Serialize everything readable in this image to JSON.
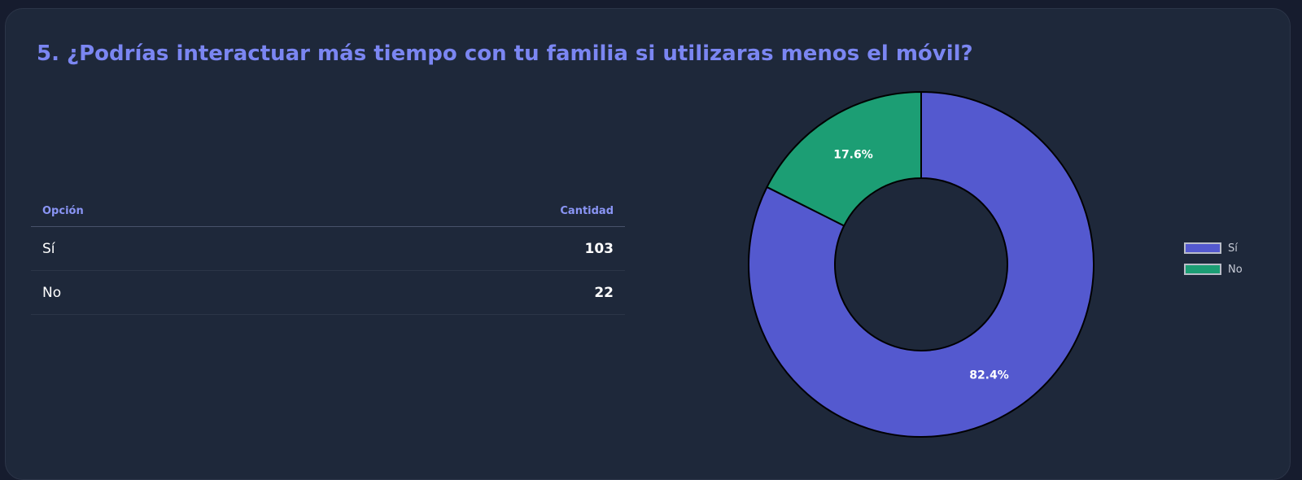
{
  "title": "5. ¿Podrías interactuar más tiempo con tu familia si utilizaras menos el móvil?",
  "table": {
    "headers": [
      "Opción",
      "Cantidad"
    ],
    "rows": [
      {
        "option": "Sí",
        "count": "103"
      },
      {
        "option": "No",
        "count": "22"
      }
    ]
  },
  "chart_data": {
    "type": "pie",
    "variant": "doughnut",
    "categories": [
      "Sí",
      "No"
    ],
    "values": [
      103,
      22
    ],
    "labels": [
      "82.4%",
      "17.6%"
    ],
    "colors": [
      "#5459cf",
      "#1c9e74"
    ],
    "legend": {
      "position": "right",
      "entries": [
        "Sí",
        "No"
      ]
    }
  }
}
